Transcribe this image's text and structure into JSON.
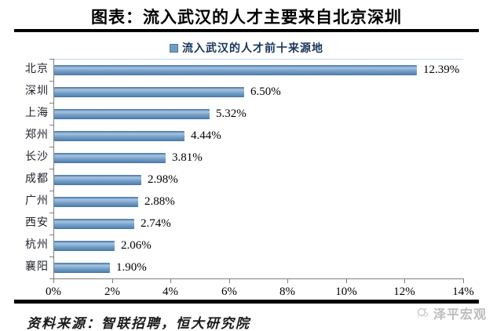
{
  "title": "图表：流入武汉的人才主要来自北京深圳",
  "legend": {
    "label": "流入武汉的人才前十来源地",
    "marker_color": "#6f9cc6"
  },
  "chart_data": {
    "type": "bar",
    "orientation": "horizontal",
    "title": "流入武汉的人才前十来源地",
    "categories": [
      "北京",
      "深圳",
      "上海",
      "郑州",
      "长沙",
      "成都",
      "广州",
      "西安",
      "杭州",
      "襄阳"
    ],
    "values": [
      12.39,
      6.5,
      5.32,
      4.44,
      3.81,
      2.98,
      2.88,
      2.74,
      2.06,
      1.9
    ],
    "value_labels": [
      "12.39%",
      "6.50%",
      "5.32%",
      "4.44%",
      "3.81%",
      "2.98%",
      "2.88%",
      "2.74%",
      "2.06%",
      "1.90%"
    ],
    "xlim": [
      0,
      14
    ],
    "x_tick_labels": [
      "0%",
      "2%",
      "4%",
      "6%",
      "8%",
      "10%",
      "12%",
      "14%"
    ],
    "xlabel": "",
    "ylabel": "",
    "grid": false,
    "legend_position": "top-center",
    "bar_color": "#6f9cc6"
  },
  "source_note": "资料来源：智联招聘，恒大研究院",
  "watermark": {
    "label": "泽平宏观"
  },
  "colors": {
    "bar": "#6f9cc6",
    "bar_edge_dark": "#44729f",
    "bar_highlight": "#a6c4df",
    "axis": "#7f7f7f",
    "plot_top_border": "#bdd7ee",
    "legend_text": "#17365d",
    "rule": "#000000",
    "watermark_gray": "#bcbcbc"
  }
}
